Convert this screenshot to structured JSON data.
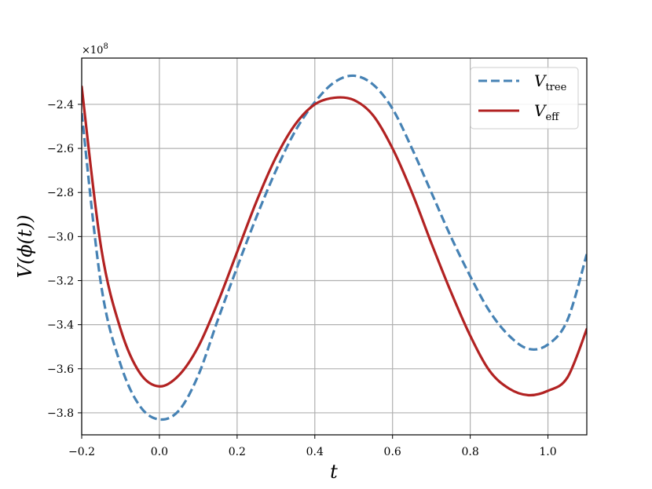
{
  "chart_data": {
    "type": "line",
    "title": "",
    "xlabel": "t",
    "ylabel": "V(ϕ(t))",
    "y_offset_label": "×10",
    "y_offset_exponent": "8",
    "xlim": [
      -0.2,
      1.1
    ],
    "ylim": [
      -3.9,
      -2.19
    ],
    "y_scale_factor": 100000000.0,
    "xticks": [
      -0.2,
      0.0,
      0.2,
      0.4,
      0.6,
      0.8,
      1.0
    ],
    "xtick_labels": [
      "−0.2",
      "0.0",
      "0.2",
      "0.4",
      "0.6",
      "0.8",
      "1.0"
    ],
    "yticks": [
      -3.8,
      -3.6,
      -3.4,
      -3.2,
      -3.0,
      -2.8,
      -2.6,
      -2.4
    ],
    "ytick_labels": [
      "−3.8",
      "−3.6",
      "−3.4",
      "−3.2",
      "−3.0",
      "−2.8",
      "−2.6",
      "−2.4"
    ],
    "grid": true,
    "legend_position": "top-right",
    "series": [
      {
        "name": "V",
        "name_sub": "tree",
        "color": "#4682b4",
        "style": "dashed",
        "x": [
          -0.2,
          -0.15,
          -0.1,
          -0.05,
          0.0,
          0.05,
          0.1,
          0.15,
          0.2,
          0.25,
          0.3,
          0.35,
          0.4,
          0.45,
          0.5,
          0.55,
          0.6,
          0.65,
          0.7,
          0.75,
          0.8,
          0.85,
          0.9,
          0.95,
          1.0,
          1.05,
          1.1
        ],
        "values": [
          -2.44,
          -3.22,
          -3.58,
          -3.77,
          -3.83,
          -3.79,
          -3.63,
          -3.38,
          -3.14,
          -2.91,
          -2.7,
          -2.52,
          -2.39,
          -2.3,
          -2.27,
          -2.31,
          -2.42,
          -2.6,
          -2.8,
          -3.0,
          -3.18,
          -3.34,
          -3.45,
          -3.51,
          -3.49,
          -3.38,
          -3.08
        ]
      },
      {
        "name": "V",
        "name_sub": "eff",
        "color": "#b22222",
        "style": "solid",
        "x": [
          -0.2,
          -0.15,
          -0.1,
          -0.05,
          0.0,
          0.05,
          0.1,
          0.15,
          0.2,
          0.25,
          0.3,
          0.35,
          0.4,
          0.45,
          0.5,
          0.55,
          0.6,
          0.65,
          0.7,
          0.75,
          0.8,
          0.85,
          0.9,
          0.95,
          1.0,
          1.05,
          1.1
        ],
        "values": [
          -2.32,
          -3.05,
          -3.42,
          -3.62,
          -3.68,
          -3.63,
          -3.5,
          -3.3,
          -3.07,
          -2.84,
          -2.64,
          -2.49,
          -2.4,
          -2.37,
          -2.38,
          -2.45,
          -2.6,
          -2.8,
          -3.03,
          -3.25,
          -3.45,
          -3.61,
          -3.69,
          -3.72,
          -3.7,
          -3.64,
          -3.42
        ]
      }
    ]
  }
}
